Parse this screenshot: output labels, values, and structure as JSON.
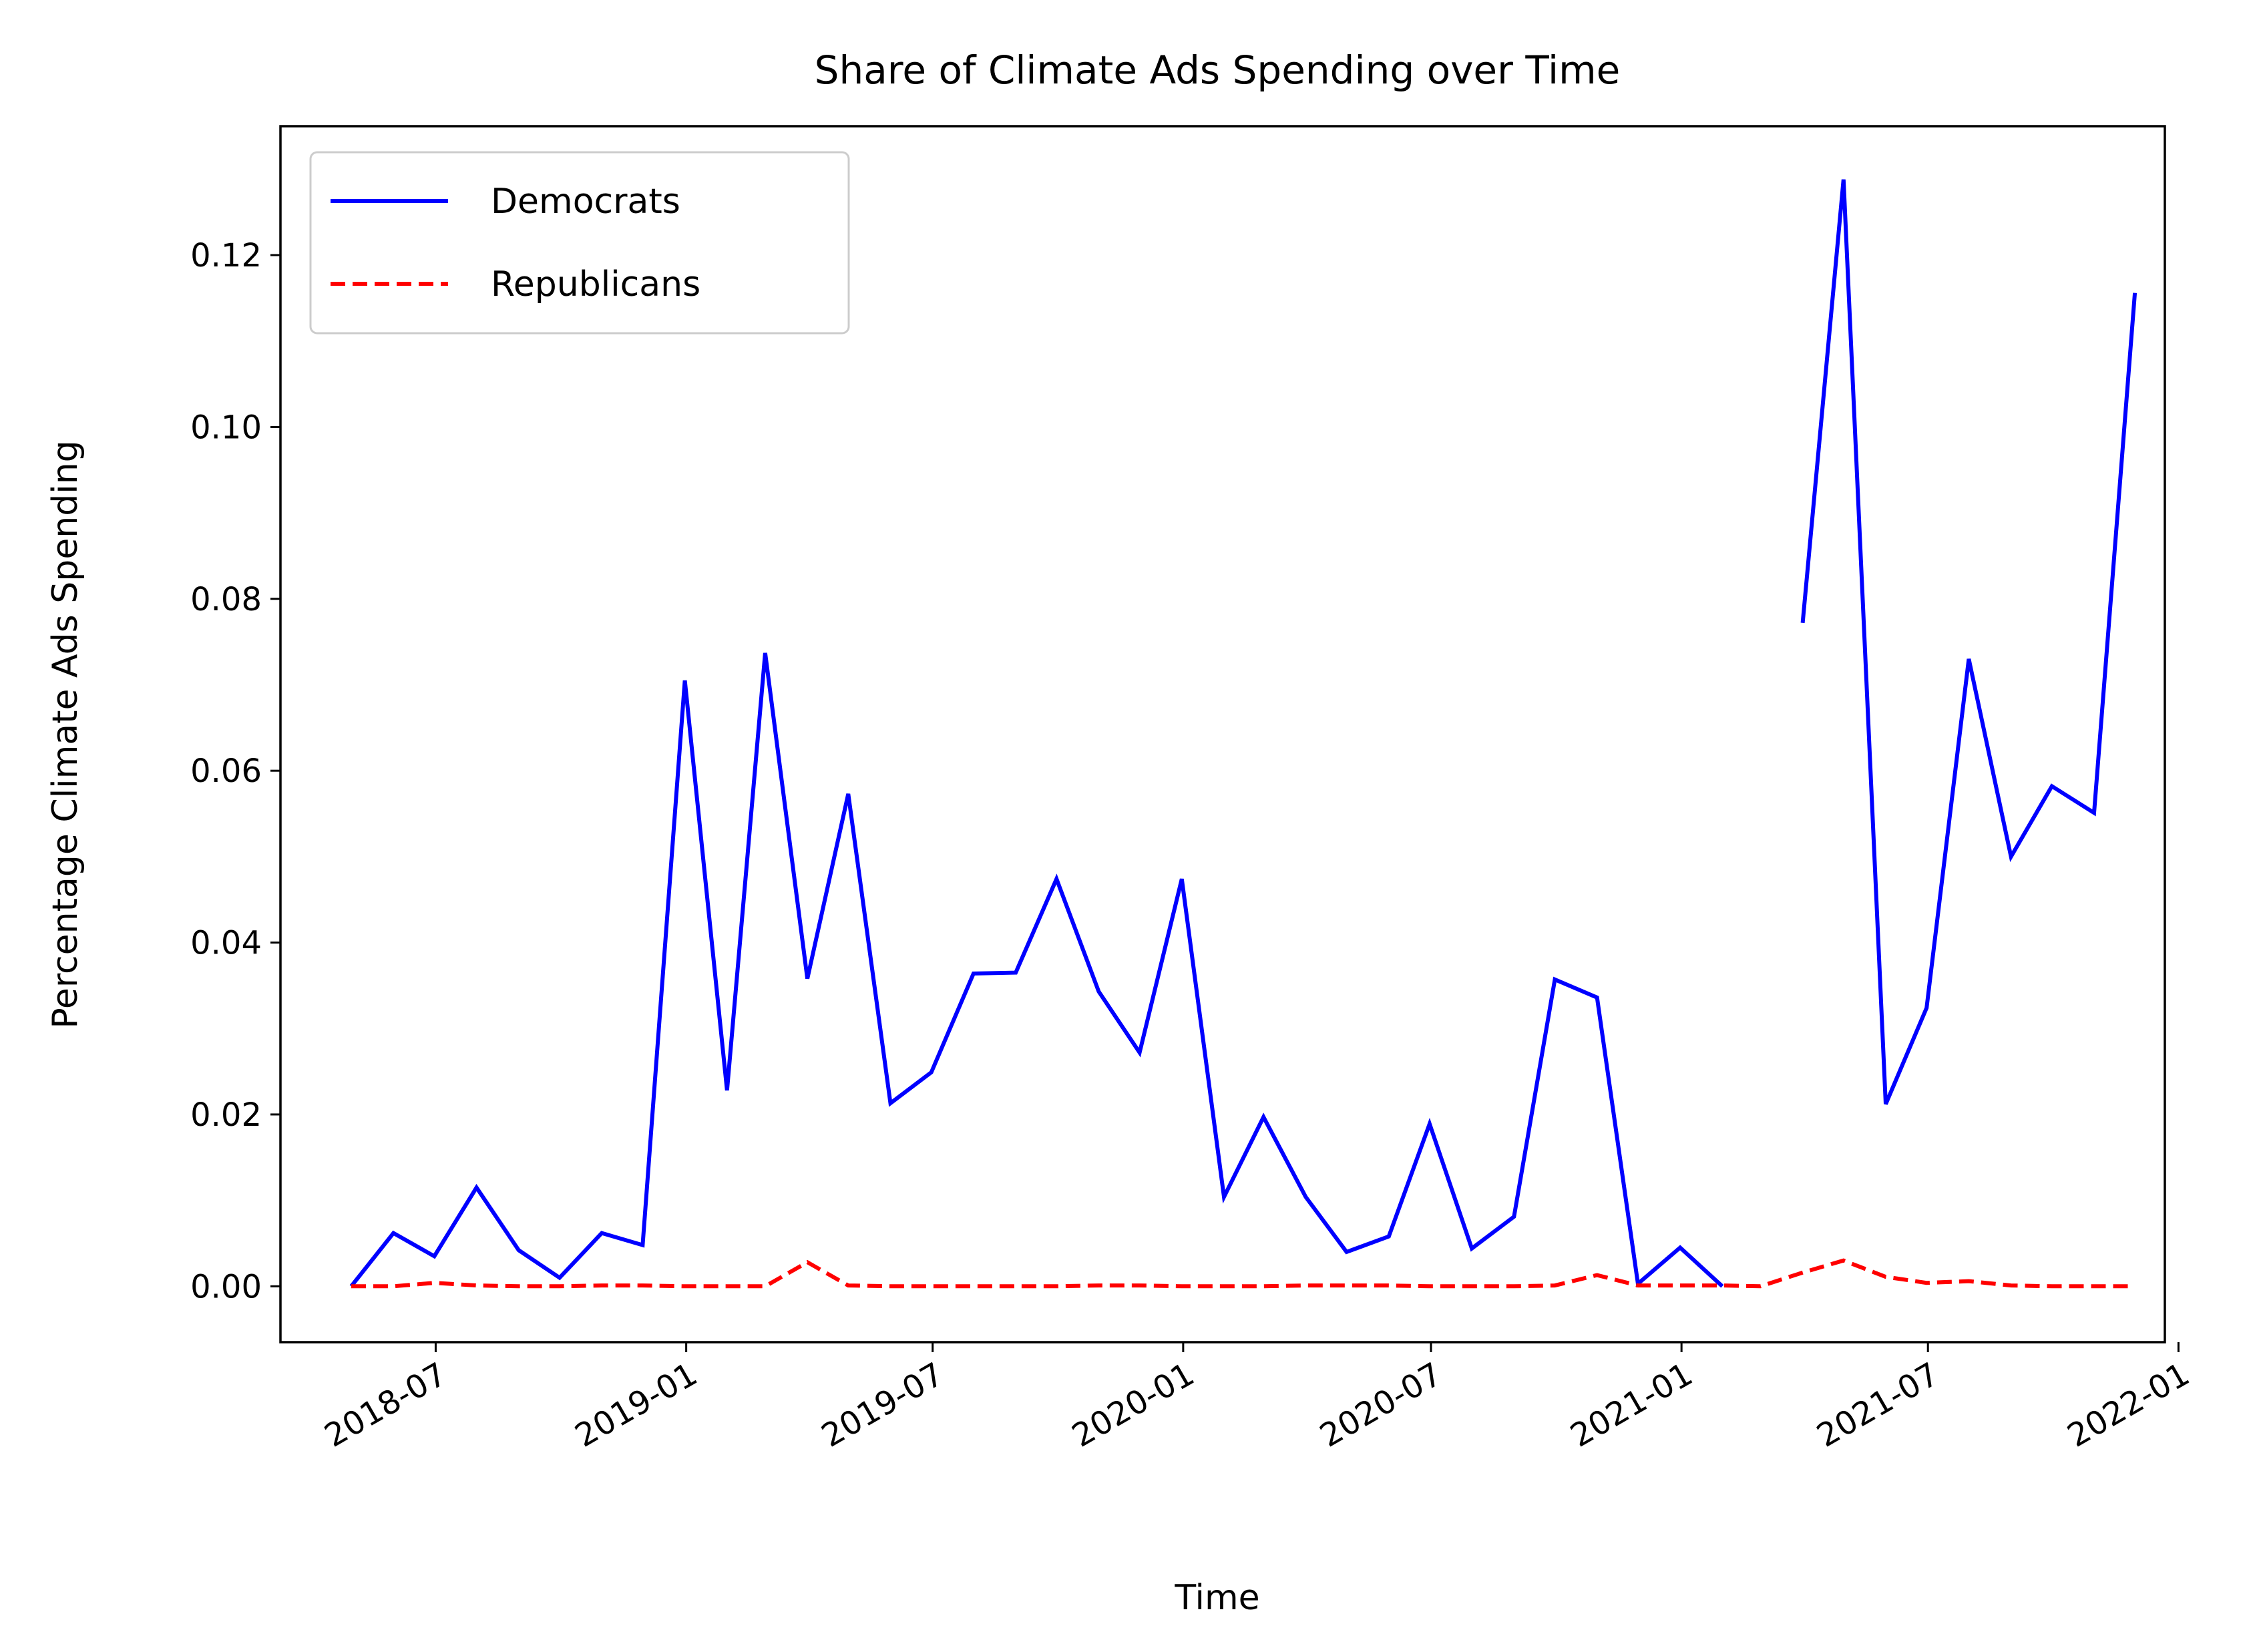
{
  "chart_data": {
    "type": "line",
    "title": "Share of Climate Ads Spending over Time",
    "xlabel": "Time",
    "ylabel": "Percentage Climate Ads Spending",
    "x_tick_labels": [
      "2018-07",
      "2019-01",
      "2019-07",
      "2020-01",
      "2020-07",
      "2021-01",
      "2021-07",
      "2022-01"
    ],
    "y_tick_labels": [
      "0.00",
      "0.02",
      "0.04",
      "0.06",
      "0.08",
      "0.10",
      "0.12"
    ],
    "ylim": [
      -0.0065,
      0.135
    ],
    "xlim": [
      "2018-03-09",
      "2021-12-22"
    ],
    "grid": false,
    "legend_position": "upper left",
    "series": [
      {
        "name": "Democrats",
        "color": "#0000ff",
        "line_style": "solid",
        "x": [
          "2018-04-30",
          "2018-05-31",
          "2018-06-30",
          "2018-07-31",
          "2018-08-31",
          "2018-09-30",
          "2018-10-31",
          "2018-11-30",
          "2018-12-31",
          "2019-01-31",
          "2019-02-28",
          "2019-03-31",
          "2019-04-30",
          "2019-05-31",
          "2019-06-30",
          "2019-07-31",
          "2019-08-31",
          "2019-09-30",
          "2019-10-31",
          "2019-11-30",
          "2019-12-31",
          "2020-01-31",
          "2020-02-29",
          "2020-03-31",
          "2020-04-30",
          "2020-05-31",
          "2020-06-30",
          "2020-07-31",
          "2020-08-31",
          "2020-09-30",
          "2020-10-31",
          "2020-11-30",
          "2020-12-31",
          "2021-01-31",
          "2021-02-28",
          "2021-03-31",
          "2021-04-30",
          "2021-05-31",
          "2021-06-30",
          "2021-07-31",
          "2021-08-31",
          "2021-09-30",
          "2021-10-31",
          "2021-11-30"
        ],
        "y": [
          0.0,
          0.0062,
          0.0035,
          0.0115,
          0.0042,
          0.001,
          0.0062,
          0.0048,
          0.0705,
          0.0228,
          0.0737,
          0.0358,
          0.0573,
          0.0213,
          0.0249,
          0.0364,
          0.0365,
          0.0474,
          0.0343,
          0.0272,
          0.0474,
          0.0104,
          0.0197,
          0.0104,
          0.004,
          0.0058,
          0.0189,
          0.0044,
          0.0081,
          0.0357,
          0.0336,
          0.0003,
          0.0045,
          0.0,
          null,
          0.0772,
          0.1288,
          0.0212,
          0.0324,
          0.073,
          0.05,
          0.0582,
          0.0551,
          0.1156
        ]
      },
      {
        "name": "Republicans",
        "color": "#ff0000",
        "line_style": "dashed",
        "x": [
          "2018-04-30",
          "2018-05-31",
          "2018-06-30",
          "2018-07-31",
          "2018-08-31",
          "2018-09-30",
          "2018-10-31",
          "2018-11-30",
          "2018-12-31",
          "2019-01-31",
          "2019-02-28",
          "2019-03-31",
          "2019-04-30",
          "2019-05-31",
          "2019-06-30",
          "2019-07-31",
          "2019-08-31",
          "2019-09-30",
          "2019-10-31",
          "2019-11-30",
          "2019-12-31",
          "2020-01-31",
          "2020-02-29",
          "2020-03-31",
          "2020-04-30",
          "2020-05-31",
          "2020-06-30",
          "2020-07-31",
          "2020-08-31",
          "2020-09-30",
          "2020-10-31",
          "2020-11-30",
          "2020-12-31",
          "2021-01-31",
          "2021-02-28",
          "2021-03-31",
          "2021-04-30",
          "2021-05-31",
          "2021-06-30",
          "2021-07-31",
          "2021-08-31",
          "2021-09-30",
          "2021-10-31",
          "2021-11-30"
        ],
        "y": [
          0.0,
          0.0,
          0.0004,
          0.0001,
          0.0,
          0.0,
          0.0001,
          0.0001,
          0.0,
          0.0,
          0.0,
          0.0028,
          0.0001,
          0.0,
          0.0,
          0.0,
          0.0,
          0.0,
          0.0001,
          0.0001,
          0.0,
          0.0,
          0.0,
          0.0001,
          0.0001,
          0.0001,
          0.0,
          0.0,
          0.0,
          0.0001,
          0.0013,
          0.0001,
          0.0001,
          0.0001,
          0.0,
          0.0016,
          0.003,
          0.0011,
          0.0004,
          0.0006,
          0.0001,
          0.0,
          0.0,
          0.0
        ]
      }
    ]
  }
}
